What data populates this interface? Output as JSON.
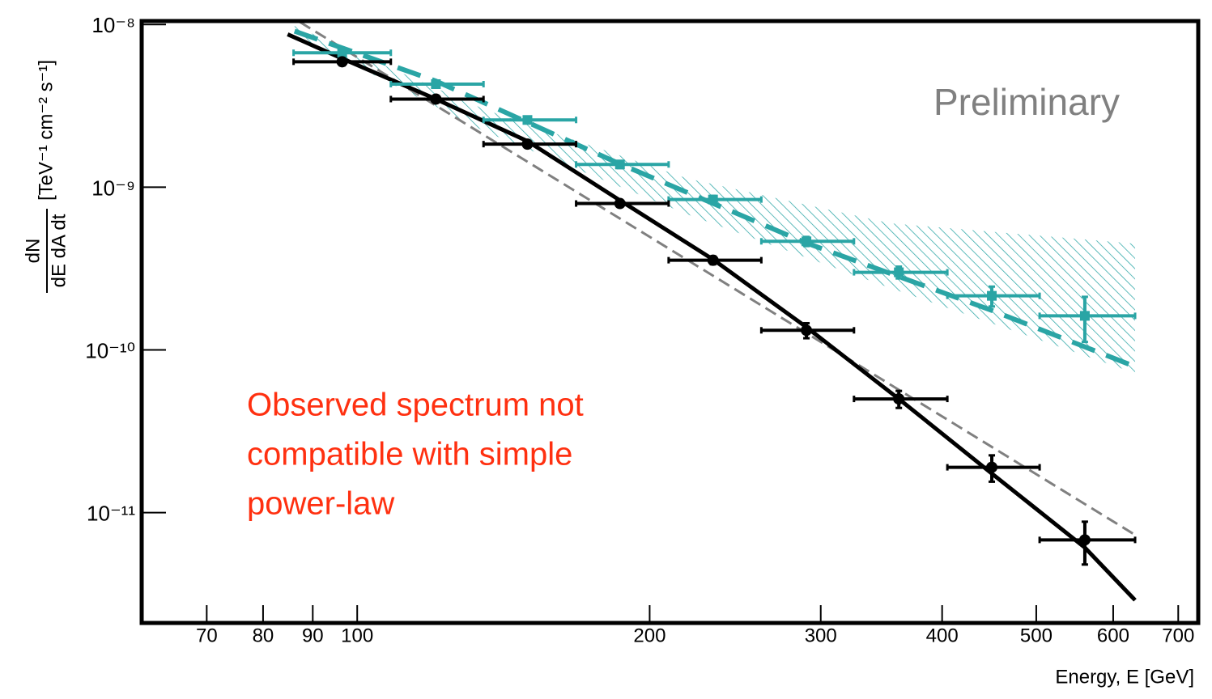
{
  "chart_data": {
    "type": "scatter",
    "xlog": true,
    "ylog": true,
    "xlim": [
      60,
      734
    ],
    "ylim": [
      2.1e-12,
      1.05e-08
    ],
    "xticks": [
      70,
      80,
      90,
      100,
      200,
      300,
      400,
      500,
      600,
      700
    ],
    "yticks": [
      {
        "value": 1e-11,
        "label": "10⁻¹¹"
      },
      {
        "value": 1e-10,
        "label": "10⁻¹⁰"
      },
      {
        "value": 1e-09,
        "label": "10⁻⁹"
      },
      {
        "value": 1e-08,
        "label": "10⁻⁸"
      }
    ],
    "x_label": "Energy, E [GeV]",
    "y_label_numerator": "dN",
    "y_label_denominator": "dE dA dt",
    "y_label_units": "[TeV⁻¹ cm⁻² s⁻¹]",
    "annotation": "Preliminary",
    "note_lines": [
      "Observed spectrum not",
      "compatible with simple",
      "power-law"
    ],
    "bins": [
      86.0,
      108.3,
      134.9,
      168.0,
      209.2,
      260.6,
      324.6,
      405,
      504,
      632
    ],
    "x": [
      96.5,
      120.5,
      149.7,
      186.4,
      232.4,
      290,
      361,
      450,
      561
    ],
    "band": {
      "color": "#2aa5a5",
      "x": [
        86.2,
        135.3,
        218.9,
        353.8,
        632
      ],
      "upper": [
        9.8e-09,
        3e-09,
        1.13e-09,
        6e-10,
        4.5e-10
      ],
      "lower": [
        8.7e-09,
        2.2e-09,
        6.8e-10,
        2.4e-10,
        7.2e-11
      ]
    },
    "curves": [
      {
        "color": "#808080",
        "dash": "dashed",
        "width": 3,
        "x": [
          87.3,
          632
        ],
        "values": [
          1.035e-08,
          7.3e-12
        ]
      },
      {
        "color": "#2aa5a5",
        "dash": "dashed",
        "width": 6,
        "x": [
          86.2,
          120.5,
          186.4,
          290,
          450,
          632
        ],
        "values": [
          9.1e-09,
          4.49e-09,
          1.39e-09,
          4.54e-10,
          1.75e-10,
          7.9e-11
        ]
      },
      {
        "color": "#000000",
        "dash": "solid",
        "width": 5,
        "x": [
          84.8,
          96.5,
          120.5,
          149.7,
          186.4,
          232.4,
          290,
          361,
          450,
          561,
          632
        ],
        "values": [
          8.7e-09,
          6.18e-09,
          3.48e-09,
          1.92e-09,
          8.3e-10,
          3.6e-10,
          1.38e-10,
          5e-11,
          1.74e-11,
          6.1e-12,
          2.9e-12
        ]
      }
    ],
    "series": [
      {
        "color": "#2aa5a5",
        "marker": "square",
        "values": [
          6.7e-09,
          4.3e-09,
          2.59e-09,
          1.38e-09,
          8.4e-10,
          4.65e-10,
          3e-10,
          2.15e-10,
          1.62e-10
        ],
        "yerr": [
          3e-10,
          2e-10,
          1.2e-10,
          7e-11,
          4.5e-11,
          3e-11,
          2.5e-11,
          3e-11,
          5e-11
        ]
      },
      {
        "color": "#000000",
        "marker": "circle",
        "values": [
          5.9e-09,
          3.48e-09,
          1.84e-09,
          7.94e-10,
          3.56e-10,
          1.32e-10,
          5e-11,
          1.9e-11,
          6.8e-12
        ],
        "yerr": [
          3e-10,
          1.5e-10,
          8e-11,
          3e-11,
          2e-11,
          1.4e-11,
          6e-12,
          3.5e-12,
          2e-12
        ]
      }
    ]
  }
}
